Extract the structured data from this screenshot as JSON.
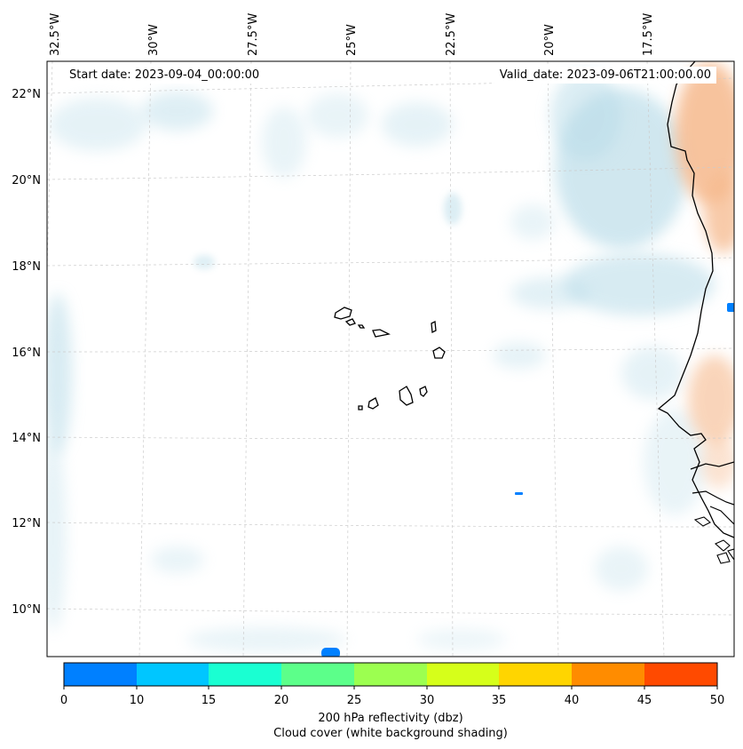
{
  "header": {
    "start_date": "Start date: 2023-09-04_00:00:00",
    "valid_date": "Valid_date: 2023-09-06T21:00:00.00"
  },
  "map": {
    "lon_labels": [
      "32.5°W",
      "30°W",
      "27.5°W",
      "25°W",
      "22.5°W",
      "20°W",
      "17.5°W"
    ],
    "lat_labels": [
      "22°N",
      "20°N",
      "18°N",
      "16°N",
      "14°N",
      "12°N",
      "10°N"
    ],
    "land_color": "#000000",
    "cloud_color": "#b7dbe8",
    "warm_color": "#f6b98d"
  },
  "colorbar": {
    "colors": [
      "#0080ff",
      "#00c6ff",
      "#1affd2",
      "#5cff8a",
      "#9cff50",
      "#d6ff1a",
      "#ffd500",
      "#ff8c00",
      "#ff4a00"
    ],
    "ticks": [
      "0",
      "10",
      "15",
      "20",
      "25",
      "30",
      "35",
      "40",
      "45",
      "50"
    ],
    "label": "200 hPa reflectivity (dbz)",
    "sublabel": "Cloud cover (white background shading)"
  }
}
